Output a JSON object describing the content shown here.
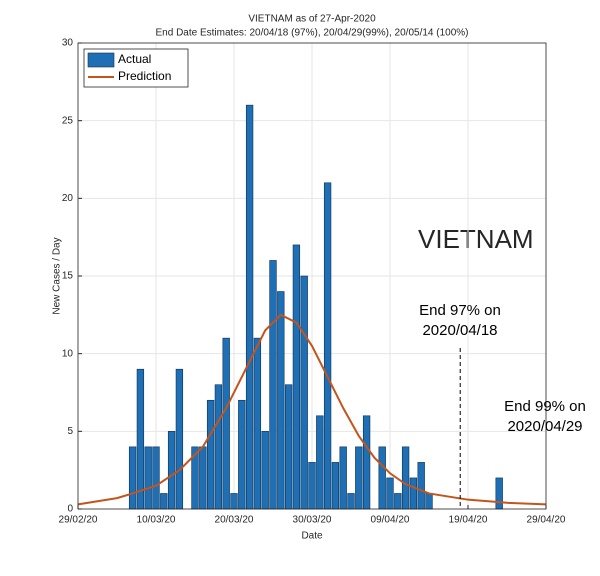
{
  "chart_data": {
    "type": "bar",
    "title": "VIETNAM as of 27-Apr-2020",
    "subtitle": "End Date Estimates: 20/04/18 (97%), 20/04/29(99%), 20/05/14 (100%)",
    "x_label": "Date",
    "y_label": "New Cases / Day",
    "xlim": [
      "2020-02-29",
      "2020-04-29"
    ],
    "xticks": [
      {
        "value": "2020-02-29",
        "label": "29/02/20"
      },
      {
        "value": "2020-03-10",
        "label": "10/03/20"
      },
      {
        "value": "2020-03-20",
        "label": "20/03/20"
      },
      {
        "value": "2020-03-30",
        "label": "30/03/20"
      },
      {
        "value": "2020-04-09",
        "label": "09/04/20"
      },
      {
        "value": "2020-04-19",
        "label": "19/04/20"
      },
      {
        "value": "2020-04-29",
        "label": "29/04/20"
      }
    ],
    "ylim": [
      0,
      30
    ],
    "yticks": [
      0,
      5,
      10,
      15,
      20,
      25,
      30
    ],
    "grid": true,
    "legend": "upper left",
    "series": [
      {
        "name": "Actual",
        "type": "bar",
        "color": "#1f6fb5",
        "x": [
          "2020-03-07",
          "2020-03-08",
          "2020-03-09",
          "2020-03-10",
          "2020-03-11",
          "2020-03-12",
          "2020-03-13",
          "2020-03-15",
          "2020-03-16",
          "2020-03-17",
          "2020-03-18",
          "2020-03-19",
          "2020-03-20",
          "2020-03-21",
          "2020-03-22",
          "2020-03-23",
          "2020-03-24",
          "2020-03-25",
          "2020-03-26",
          "2020-03-27",
          "2020-03-28",
          "2020-03-29",
          "2020-03-30",
          "2020-03-31",
          "2020-04-01",
          "2020-04-02",
          "2020-04-03",
          "2020-04-04",
          "2020-04-05",
          "2020-04-06",
          "2020-04-08",
          "2020-04-09",
          "2020-04-10",
          "2020-04-11",
          "2020-04-12",
          "2020-04-13",
          "2020-04-14",
          "2020-04-23"
        ],
        "values": [
          4,
          9,
          4,
          4,
          1,
          5,
          9,
          4,
          4,
          7,
          8,
          11,
          1,
          7,
          26,
          11,
          5,
          16,
          14,
          8,
          17,
          15,
          3,
          6,
          21,
          3,
          4,
          1,
          4,
          6,
          4,
          2,
          1,
          4,
          2,
          3,
          1,
          2
        ]
      },
      {
        "name": "Prediction",
        "type": "line",
        "color": "#c4541c",
        "x": [
          "2020-02-29",
          "2020-03-05",
          "2020-03-07",
          "2020-03-10",
          "2020-03-13",
          "2020-03-16",
          "2020-03-19",
          "2020-03-22",
          "2020-03-24",
          "2020-03-26",
          "2020-03-28",
          "2020-03-30",
          "2020-04-01",
          "2020-04-03",
          "2020-04-05",
          "2020-04-07",
          "2020-04-09",
          "2020-04-11",
          "2020-04-14",
          "2020-04-19",
          "2020-04-24",
          "2020-04-29"
        ],
        "values": [
          0.3,
          0.7,
          1.0,
          1.5,
          2.5,
          4,
          6.5,
          9.5,
          11.5,
          12.5,
          12,
          10.5,
          8.5,
          6.5,
          4.7,
          3.3,
          2.3,
          1.6,
          1.0,
          0.6,
          0.4,
          0.3
        ]
      }
    ],
    "big_label": "VIETNAM",
    "annotations": [
      {
        "lines": [
          "End 97% on",
          "2020/04/18"
        ],
        "x": "2020-04-18"
      },
      {
        "lines": [
          "End 99% on",
          "2020/04/29"
        ]
      }
    ]
  }
}
